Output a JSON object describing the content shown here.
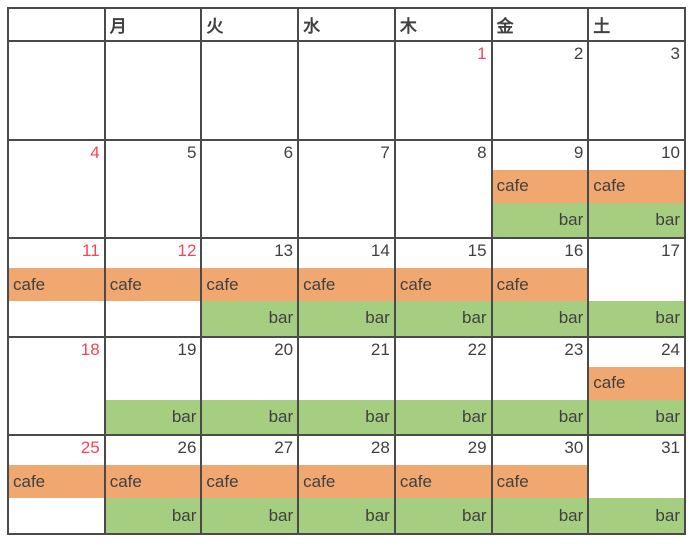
{
  "calendar": {
    "weekday_headers": [
      "",
      "月",
      "火",
      "水",
      "木",
      "金",
      "土"
    ],
    "event_labels": {
      "cafe": "cafe",
      "bar": "bar"
    },
    "weeks": [
      [
        {
          "day": "",
          "red": false,
          "cafe": false,
          "bar": false
        },
        {
          "day": "",
          "red": false,
          "cafe": false,
          "bar": false
        },
        {
          "day": "",
          "red": false,
          "cafe": false,
          "bar": false
        },
        {
          "day": "",
          "red": false,
          "cafe": false,
          "bar": false
        },
        {
          "day": "1",
          "red": true,
          "cafe": false,
          "bar": false
        },
        {
          "day": "2",
          "red": false,
          "cafe": false,
          "bar": false
        },
        {
          "day": "3",
          "red": false,
          "cafe": false,
          "bar": false
        }
      ],
      [
        {
          "day": "4",
          "red": true,
          "cafe": false,
          "bar": false
        },
        {
          "day": "5",
          "red": false,
          "cafe": false,
          "bar": false
        },
        {
          "day": "6",
          "red": false,
          "cafe": false,
          "bar": false
        },
        {
          "day": "7",
          "red": false,
          "cafe": false,
          "bar": false
        },
        {
          "day": "8",
          "red": false,
          "cafe": false,
          "bar": false
        },
        {
          "day": "9",
          "red": false,
          "cafe": true,
          "bar": true
        },
        {
          "day": "10",
          "red": false,
          "cafe": true,
          "bar": true
        }
      ],
      [
        {
          "day": "11",
          "red": true,
          "cafe": true,
          "bar": false
        },
        {
          "day": "12",
          "red": true,
          "cafe": true,
          "bar": false
        },
        {
          "day": "13",
          "red": false,
          "cafe": true,
          "bar": true
        },
        {
          "day": "14",
          "red": false,
          "cafe": true,
          "bar": true
        },
        {
          "day": "15",
          "red": false,
          "cafe": true,
          "bar": true
        },
        {
          "day": "16",
          "red": false,
          "cafe": true,
          "bar": true
        },
        {
          "day": "17",
          "red": false,
          "cafe": false,
          "bar": true
        }
      ],
      [
        {
          "day": "18",
          "red": true,
          "cafe": false,
          "bar": false
        },
        {
          "day": "19",
          "red": false,
          "cafe": false,
          "bar": true
        },
        {
          "day": "20",
          "red": false,
          "cafe": false,
          "bar": true
        },
        {
          "day": "21",
          "red": false,
          "cafe": false,
          "bar": true
        },
        {
          "day": "22",
          "red": false,
          "cafe": false,
          "bar": true
        },
        {
          "day": "23",
          "red": false,
          "cafe": false,
          "bar": true
        },
        {
          "day": "24",
          "red": false,
          "cafe": true,
          "bar": true
        }
      ],
      [
        {
          "day": "25",
          "red": true,
          "cafe": true,
          "bar": false
        },
        {
          "day": "26",
          "red": false,
          "cafe": true,
          "bar": true
        },
        {
          "day": "27",
          "red": false,
          "cafe": true,
          "bar": true
        },
        {
          "day": "28",
          "red": false,
          "cafe": true,
          "bar": true
        },
        {
          "day": "29",
          "red": false,
          "cafe": true,
          "bar": true
        },
        {
          "day": "30",
          "red": false,
          "cafe": true,
          "bar": true
        },
        {
          "day": "31",
          "red": false,
          "cafe": false,
          "bar": true
        }
      ]
    ]
  },
  "colors": {
    "cafe_band": "#f1a870",
    "bar_band": "#a6ce80",
    "holiday_number": "#f5455a",
    "text": "#404040",
    "border": "#4a4a4a"
  }
}
